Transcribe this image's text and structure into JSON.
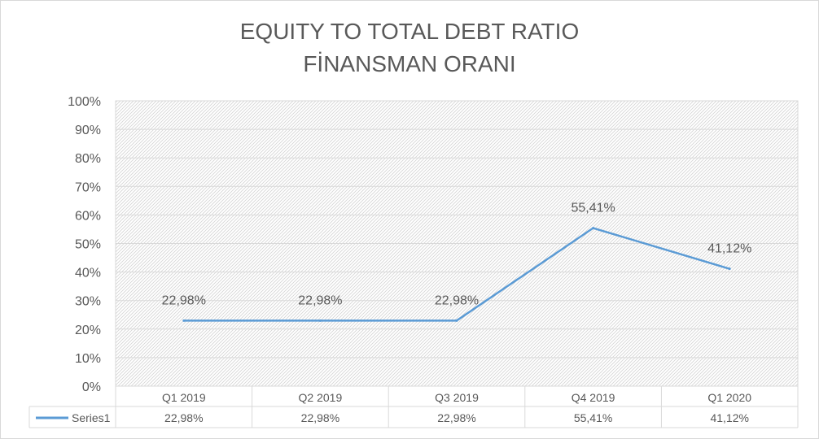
{
  "chart_data": {
    "type": "line",
    "title": "EQUITY TO TOTAL DEBT RATIO",
    "subtitle": "FİNANSMAN ORANI",
    "categories": [
      "Q1 2019",
      "Q2 2019",
      "Q3 2019",
      "Q4 2019",
      "Q1 2020"
    ],
    "series": [
      {
        "name": "Series1",
        "values": [
          22.98,
          22.98,
          22.98,
          55.41,
          41.12
        ],
        "labels": [
          "22,98%",
          "22,98%",
          "22,98%",
          "55,41%",
          "41,12%"
        ],
        "color": "#5b9bd5"
      }
    ],
    "ylim": [
      0,
      100
    ],
    "yticks": [
      "0%",
      "10%",
      "20%",
      "30%",
      "40%",
      "50%",
      "60%",
      "70%",
      "80%",
      "90%",
      "100%"
    ],
    "grid": true,
    "data_table": true,
    "legend": "data-table"
  }
}
